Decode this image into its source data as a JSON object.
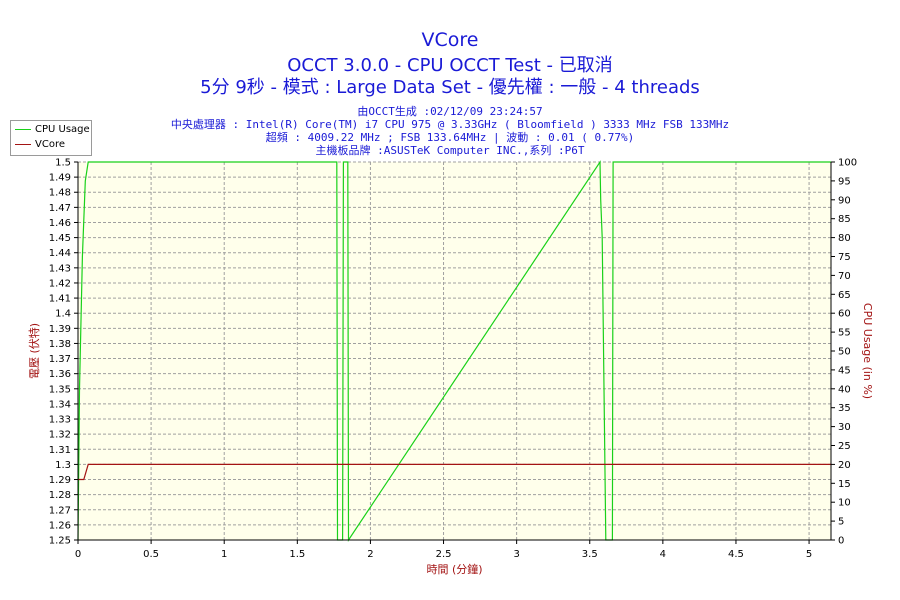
{
  "title": "VCore",
  "subtitle1": "OCCT 3.0.0 - CPU OCCT Test - 已取消",
  "subtitle2": "5分 9秒 - 模式 : Large Data Set - 優先權 : 一般 - 4 threads",
  "info_lines": [
    "由OCCT生成 :02/12/09 23:24:57",
    "中央處理器 : Intel(R) Core(TM) i7 CPU 975 @ 3.33GHz ( Bloomfield ) 3333 MHz FSB 133MHz",
    "超頻 : 4009.22 MHz ; FSB 133.64MHz | 波動 : 0.01 ( 0.77%)",
    "主機板品牌 :ASUSTeK Computer INC.,系列 :P6T"
  ],
  "colors": {
    "plot_bg": "#FFFFEB",
    "grid": "#A0A0A0",
    "title": "#1A1AD6",
    "cpu": "#19D119",
    "vcore": "#A31414",
    "axis_label": "#A31414"
  },
  "chart_data": {
    "type": "line",
    "xlabel": "時間 (分鐘)",
    "ylabel_left": "電壓 (伏特)",
    "ylabel_right": "CPU Usage (in %)",
    "xlim": [
      0,
      5.15
    ],
    "ylim_left": [
      1.25,
      1.5
    ],
    "ylim_right": [
      0,
      100
    ],
    "xticks": [
      "0",
      "0.5",
      "1",
      "1.5",
      "2",
      "2.5",
      "3",
      "3.5",
      "4",
      "4.5",
      "5"
    ],
    "yticks_left": [
      "1.25",
      "1.26",
      "1.27",
      "1.28",
      "1.29",
      "1.3",
      "1.31",
      "1.32",
      "1.33",
      "1.34",
      "1.35",
      "1.36",
      "1.37",
      "1.38",
      "1.39",
      "1.4",
      "1.41",
      "1.42",
      "1.43",
      "1.44",
      "1.45",
      "1.46",
      "1.47",
      "1.48",
      "1.49",
      "1.5"
    ],
    "yticks_right": [
      "0",
      "5",
      "10",
      "15",
      "20",
      "25",
      "30",
      "35",
      "40",
      "45",
      "50",
      "55",
      "60",
      "65",
      "70",
      "75",
      "80",
      "85",
      "90",
      "95",
      "100"
    ],
    "grid": true,
    "legend_position": "top-left",
    "series": [
      {
        "name": "CPU Usage",
        "axis": "right",
        "x": [
          0,
          0.01,
          0.03,
          0.05,
          0.07,
          1.77,
          1.775,
          1.81,
          1.815,
          1.845,
          1.85,
          3.57,
          3.575,
          3.585,
          3.61,
          3.615,
          3.655,
          3.66,
          5.15
        ],
        "y": [
          0,
          40,
          75,
          95,
          100,
          100,
          0,
          0,
          100,
          100,
          0,
          100,
          90,
          80,
          0,
          0,
          0,
          100,
          100
        ]
      },
      {
        "name": "VCore",
        "axis": "left",
        "x": [
          0,
          0.04,
          0.07,
          5.15
        ],
        "y": [
          1.29,
          1.29,
          1.3,
          1.3
        ]
      }
    ]
  }
}
